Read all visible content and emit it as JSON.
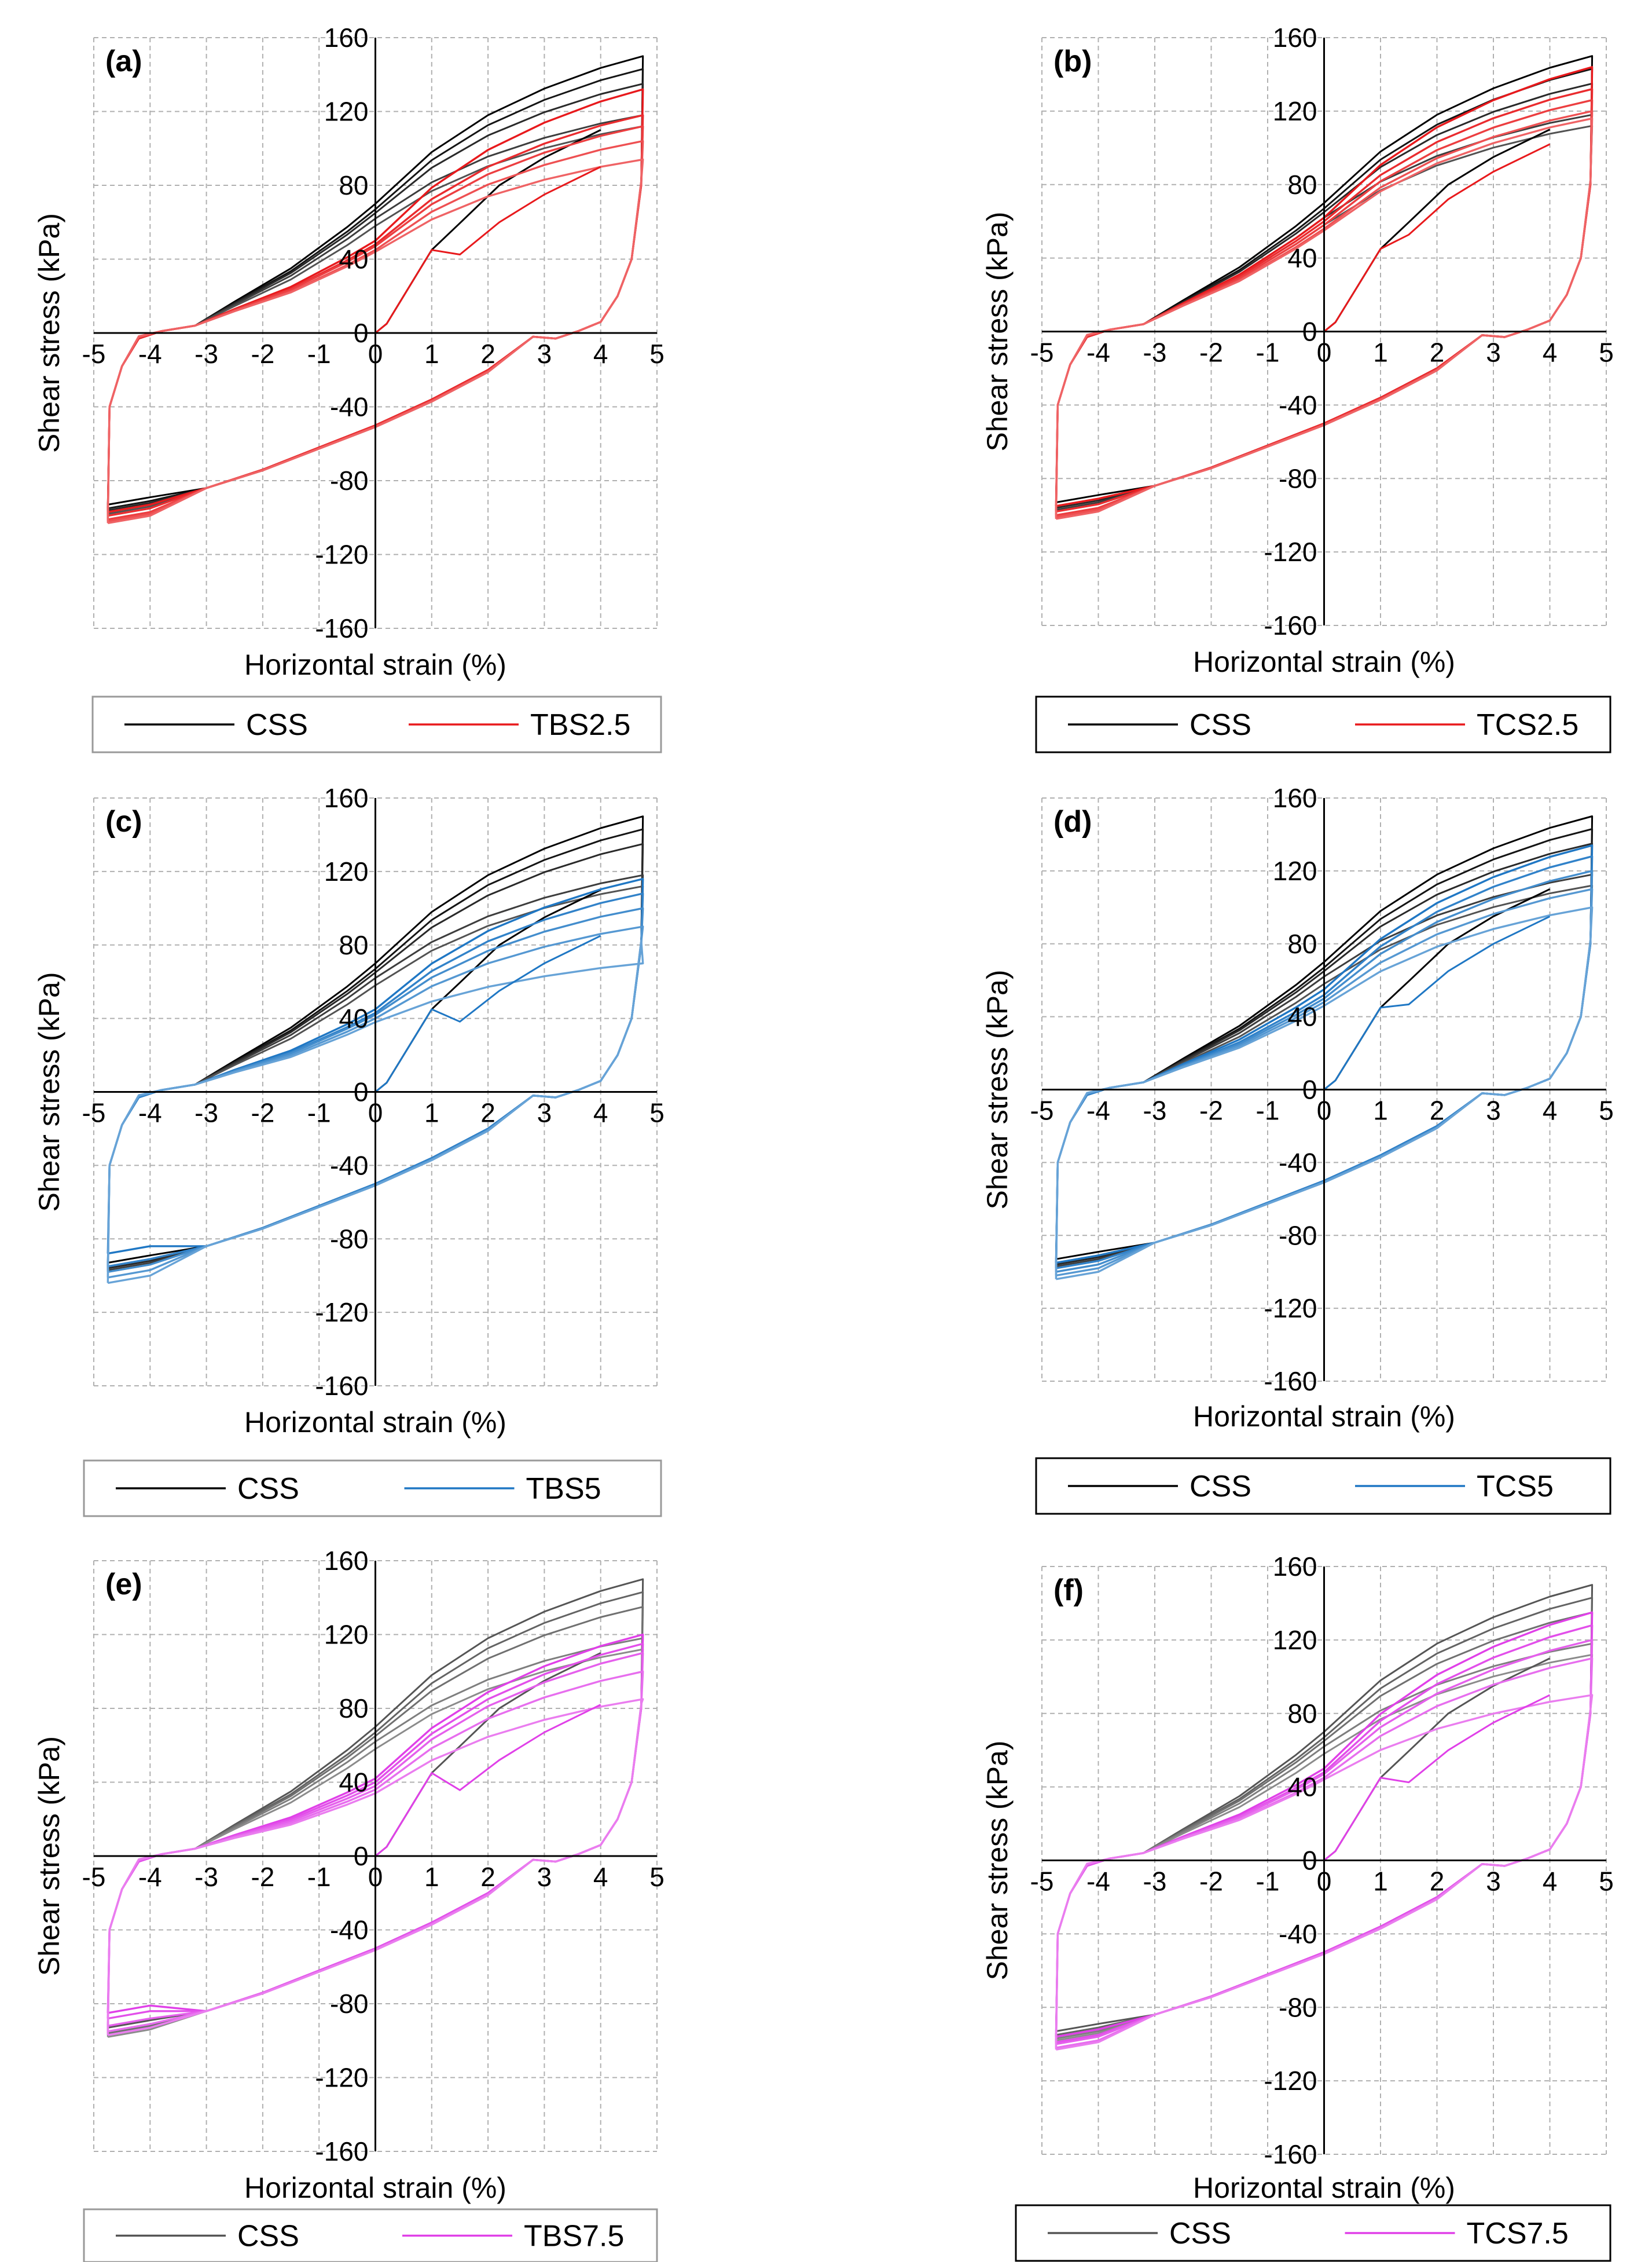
{
  "chart_data": [
    {
      "type": "line",
      "panel_label": "(a)",
      "xlabel": "Horizontal strain (%)",
      "ylabel": "Shear stress (kPa)",
      "xlim": [
        -5,
        5
      ],
      "ylim": [
        -160,
        160
      ],
      "x_ticks": [
        "-5",
        "-4",
        "-3",
        "-2",
        "-1",
        "0",
        "1",
        "2",
        "3",
        "4",
        "5"
      ],
      "y_ticks": [
        "160",
        "120",
        "80",
        "40",
        "0",
        "-40",
        "-80",
        "-120",
        "-160"
      ],
      "legend_style": "gray-border",
      "series": [
        {
          "name": "CSS",
          "color": "#000000",
          "upper_peaks": [
            150,
            143,
            135,
            118,
            112
          ],
          "lower_peaks": [
            -93,
            -95,
            -96,
            -97,
            -98
          ],
          "upper_mid": [
            70,
            67,
            65,
            62,
            58
          ]
        },
        {
          "name": "TBS2.5",
          "color": "#e8191c",
          "upper_peaks": [
            132,
            118,
            112,
            104,
            94
          ],
          "lower_peaks": [
            -97,
            -99,
            -101,
            -102,
            -103
          ],
          "upper_mid": [
            50,
            48,
            47,
            45,
            44
          ]
        }
      ]
    },
    {
      "type": "line",
      "panel_label": "(b)",
      "xlabel": "Horizontal strain (%)",
      "ylabel": "Shear stress (kPa)",
      "xlim": [
        -5,
        5
      ],
      "ylim": [
        -160,
        160
      ],
      "x_ticks": [
        "-5",
        "-4",
        "-3",
        "-2",
        "-1",
        "0",
        "1",
        "2",
        "3",
        "4",
        "5"
      ],
      "y_ticks": [
        "160",
        "120",
        "80",
        "40",
        "0",
        "-40",
        "-80",
        "-120",
        "-160"
      ],
      "legend_style": "black-border",
      "series": [
        {
          "name": "CSS",
          "color": "#000000",
          "upper_peaks": [
            150,
            143,
            135,
            118,
            112
          ],
          "lower_peaks": [
            -93,
            -95,
            -96,
            -97,
            -98
          ],
          "upper_mid": [
            70,
            67,
            65,
            62,
            58
          ]
        },
        {
          "name": "TCS2.5",
          "color": "#e8191c",
          "upper_peaks": [
            144,
            132,
            126,
            120,
            116
          ],
          "lower_peaks": [
            -95,
            -98,
            -100,
            -101,
            -102
          ],
          "upper_mid": [
            62,
            60,
            58,
            56,
            55
          ]
        }
      ]
    },
    {
      "type": "line",
      "panel_label": "(c)",
      "xlabel": "Horizontal strain (%)",
      "ylabel": "Shear stress (kPa)",
      "xlim": [
        -5,
        5
      ],
      "ylim": [
        -160,
        160
      ],
      "x_ticks": [
        "-5",
        "-4",
        "-3",
        "-2",
        "-1",
        "0",
        "1",
        "2",
        "3",
        "4",
        "5"
      ],
      "y_ticks": [
        "160",
        "120",
        "80",
        "40",
        "0",
        "-40",
        "-80",
        "-120",
        "-160"
      ],
      "legend_style": "gray-border",
      "series": [
        {
          "name": "CSS",
          "color": "#000000",
          "upper_peaks": [
            150,
            143,
            135,
            118,
            112
          ],
          "lower_peaks": [
            -93,
            -95,
            -96,
            -97,
            -98
          ],
          "upper_mid": [
            70,
            67,
            65,
            62,
            58
          ]
        },
        {
          "name": "TBS5",
          "color": "#1f77c4",
          "upper_peaks": [
            116,
            108,
            100,
            90,
            70
          ],
          "lower_peaks": [
            -88,
            -95,
            -98,
            -101,
            -104
          ],
          "upper_mid": [
            45,
            43,
            42,
            40,
            38
          ]
        }
      ]
    },
    {
      "type": "line",
      "panel_label": "(d)",
      "xlabel": "Horizontal strain (%)",
      "ylabel": "Shear stress (kPa)",
      "xlim": [
        -5,
        5
      ],
      "ylim": [
        -160,
        160
      ],
      "x_ticks": [
        "-5",
        "-4",
        "-3",
        "-2",
        "-1",
        "0",
        "1",
        "2",
        "3",
        "4",
        "5"
      ],
      "y_ticks": [
        "160",
        "120",
        "80",
        "40",
        "0",
        "-40",
        "-80",
        "-120",
        "-160"
      ],
      "legend_style": "black-border",
      "series": [
        {
          "name": "CSS",
          "color": "#000000",
          "upper_peaks": [
            150,
            143,
            135,
            118,
            112
          ],
          "lower_peaks": [
            -93,
            -95,
            -96,
            -97,
            -98
          ],
          "upper_mid": [
            70,
            67,
            65,
            62,
            58
          ]
        },
        {
          "name": "TCS5",
          "color": "#1f77c4",
          "upper_peaks": [
            134,
            128,
            120,
            110,
            100
          ],
          "lower_peaks": [
            -95,
            -98,
            -100,
            -102,
            -104
          ],
          "upper_mid": [
            55,
            52,
            50,
            48,
            46
          ]
        }
      ]
    },
    {
      "type": "line",
      "panel_label": "(e)",
      "xlabel": "Horizontal strain (%)",
      "ylabel": "Shear stress (kPa)",
      "xlim": [
        -5,
        5
      ],
      "ylim": [
        -160,
        160
      ],
      "x_ticks": [
        "-5",
        "-4",
        "-3",
        "-2",
        "-1",
        "0",
        "1",
        "2",
        "3",
        "4",
        "5"
      ],
      "y_ticks": [
        "160",
        "120",
        "80",
        "40",
        "0",
        "-40",
        "-80",
        "-120",
        "-160"
      ],
      "legend_style": "gray-border",
      "series": [
        {
          "name": "CSS",
          "color": "#555555",
          "upper_peaks": [
            150,
            143,
            135,
            118,
            112
          ],
          "lower_peaks": [
            -93,
            -95,
            -96,
            -97,
            -98
          ],
          "upper_mid": [
            70,
            67,
            65,
            62,
            58
          ]
        },
        {
          "name": "TBS7.5",
          "color": "#e040e8",
          "upper_peaks": [
            120,
            115,
            110,
            100,
            85
          ],
          "lower_peaks": [
            -85,
            -88,
            -92,
            -95,
            -97
          ],
          "upper_mid": [
            42,
            40,
            38,
            36,
            34
          ]
        }
      ]
    },
    {
      "type": "line",
      "panel_label": "(f)",
      "xlabel": "Horizontal strain (%)",
      "ylabel": "Shear stress (kPa)",
      "xlim": [
        -5,
        5
      ],
      "ylim": [
        -160,
        160
      ],
      "x_ticks": [
        "-5",
        "-4",
        "-3",
        "-2",
        "-1",
        "0",
        "1",
        "2",
        "3",
        "4",
        "5"
      ],
      "y_ticks": [
        "160",
        "120",
        "80",
        "40",
        "0",
        "-40",
        "-80",
        "-120",
        "-160"
      ],
      "legend_style": "black-border",
      "series": [
        {
          "name": "CSS",
          "color": "#555555",
          "upper_peaks": [
            150,
            143,
            135,
            118,
            112
          ],
          "lower_peaks": [
            -93,
            -95,
            -96,
            -97,
            -98
          ],
          "upper_mid": [
            70,
            67,
            65,
            62,
            58
          ]
        },
        {
          "name": "TCS7.5",
          "color": "#e040e8",
          "upper_peaks": [
            135,
            128,
            120,
            110,
            90
          ],
          "lower_peaks": [
            -96,
            -99,
            -100,
            -102,
            -103
          ],
          "upper_mid": [
            50,
            48,
            47,
            45,
            44
          ]
        }
      ]
    }
  ]
}
